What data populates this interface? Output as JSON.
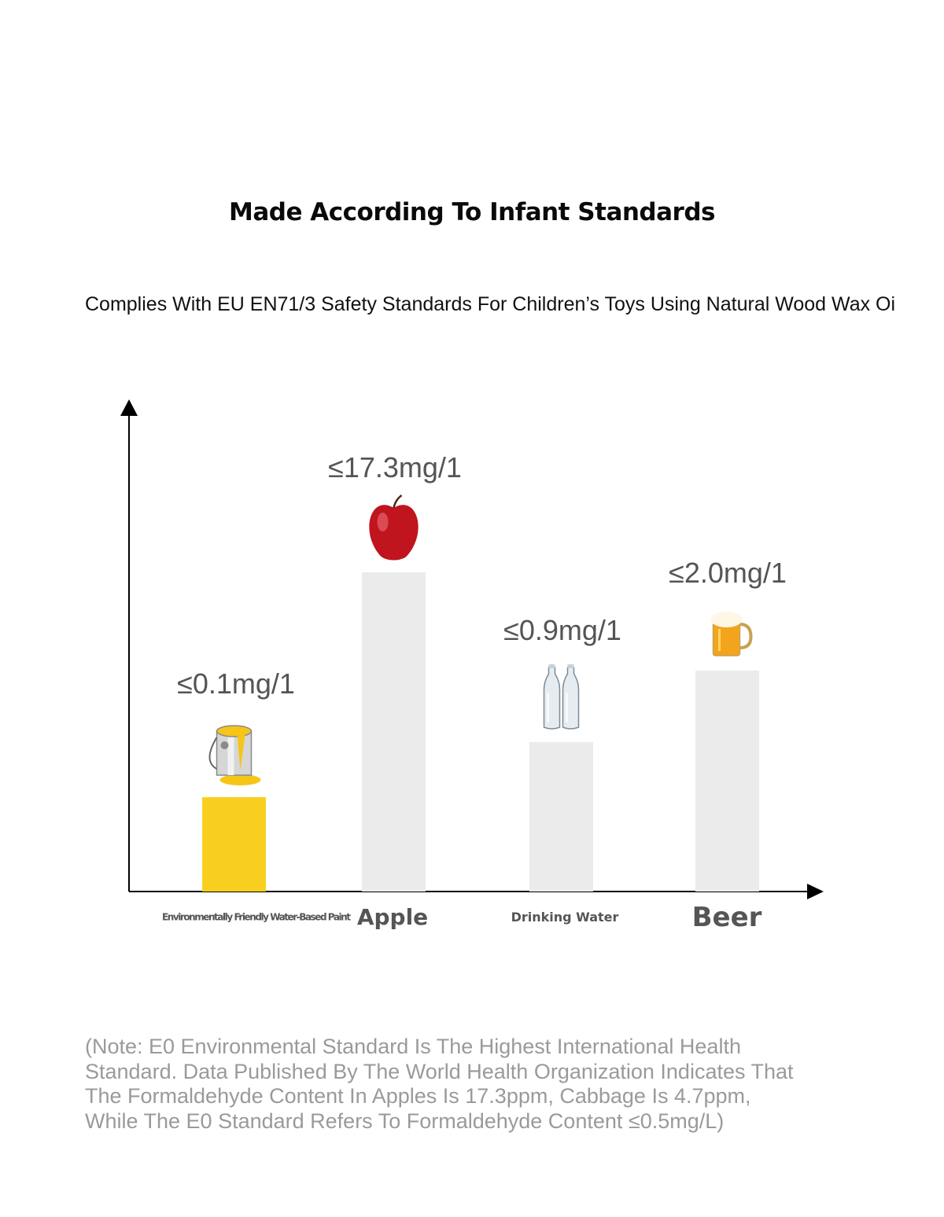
{
  "title": "Made According To Infant Standards",
  "subtitle": "Complies With EU EN71/3 Safety Standards For Children’s Toys Using Natural Wood Wax Oi",
  "note_lines": [
    "(Note: E0 Environmental Standard Is The Highest International Health",
    "Standard. Data Published By The World Health Organization Indicates That",
    "The Formaldehyde Content In Apples Is 17.3ppm, Cabbage Is 4.7ppm,",
    "While The E0 Standard Refers To Formaldehyde Content ≤0.5mg/L)"
  ],
  "colors": {
    "highlight_bar": "#f9cf1f",
    "bar": "#ebebeb",
    "axis": "#000000",
    "value_label": "#555555",
    "category_label": "#555555",
    "note": "#9a9a9a"
  },
  "chart_data": {
    "type": "bar",
    "categories": [
      "Environmentally Friendly Water-Based Paint",
      "Apple",
      "Drinking Water",
      "Beer"
    ],
    "values": [
      0.1,
      17.3,
      0.9,
      2.0
    ],
    "data_labels": [
      "≤0.1mg/1",
      "≤17.3mg/1",
      "≤0.9mg/1",
      "≤2.0mg/1"
    ],
    "icons": [
      "paint-can-icon",
      "apple-icon",
      "water-bottles-icon",
      "beer-mug-icon"
    ],
    "highlight_index": 0,
    "xlabel": "",
    "ylabel": "",
    "grid": false,
    "axis_arrows": true,
    "scale_note": "bar heights are illustrative, not proportional"
  }
}
